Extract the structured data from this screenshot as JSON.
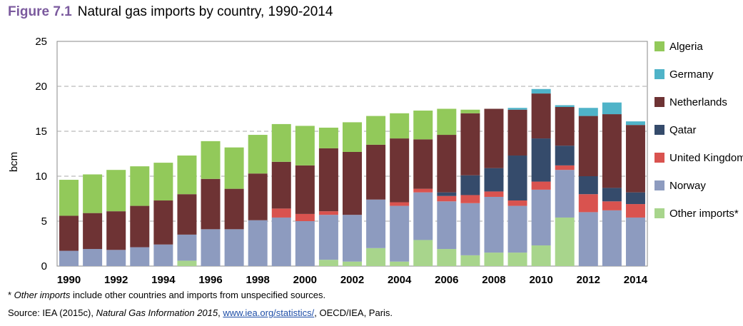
{
  "header": {
    "figure_label": "Figure 7.1",
    "title": "Natural gas imports by country, 1990-2014"
  },
  "footnote": {
    "marker": "* ",
    "italic": "Other imports",
    "rest": " include other countries and imports from unspecified sources."
  },
  "source": {
    "prefix": "Source: IEA (2015c), ",
    "italic": "Natural Gas Information 2015",
    "sep": ", ",
    "link": "www.iea.org/statistics/",
    "suffix": ", OECD/IEA, Paris."
  },
  "chart_data": {
    "type": "bar",
    "stacked": true,
    "title": "Natural gas imports by country, 1990-2014",
    "xlabel": "",
    "ylabel": "bcm",
    "ylim": [
      0,
      25
    ],
    "yticks": [
      0,
      5,
      10,
      15,
      20,
      25
    ],
    "xtick_labels": [
      "1990",
      "1992",
      "1994",
      "1996",
      "1998",
      "2000",
      "2002",
      "2004",
      "2006",
      "2008",
      "2010",
      "2012",
      "2014"
    ],
    "grid": "horizontal dashed",
    "legend_position": "right",
    "categories": [
      "1990",
      "1991",
      "1992",
      "1993",
      "1994",
      "1995",
      "1996",
      "1997",
      "1998",
      "1999",
      "2000",
      "2001",
      "2002",
      "2003",
      "2004",
      "2005",
      "2006",
      "2007",
      "2008",
      "2009",
      "2010",
      "2011",
      "2012",
      "2013",
      "2014"
    ],
    "series": [
      {
        "name": "Other imports*",
        "color": "#a8d58c",
        "values": [
          0,
          0,
          0,
          0,
          0,
          0.6,
          0,
          0,
          0,
          0,
          0,
          0.7,
          0.5,
          2.0,
          0.5,
          2.9,
          1.9,
          1.2,
          1.5,
          1.5,
          2.3,
          5.4,
          0,
          0,
          0
        ]
      },
      {
        "name": "Norway",
        "color": "#8d9bbf",
        "values": [
          1.7,
          1.9,
          1.8,
          2.1,
          2.4,
          2.9,
          4.1,
          4.1,
          5.1,
          5.4,
          5.0,
          5.0,
          5.2,
          5.4,
          6.2,
          5.3,
          5.3,
          5.8,
          6.2,
          5.2,
          6.2,
          5.3,
          6.0,
          6.2,
          5.4
        ]
      },
      {
        "name": "United Kingdom",
        "color": "#d9534f",
        "values": [
          0,
          0,
          0,
          0,
          0,
          0,
          0,
          0,
          0,
          1.0,
          0.8,
          0.4,
          0,
          0,
          0.4,
          0.4,
          0.6,
          0.9,
          0.6,
          0.6,
          0.9,
          0.5,
          2.0,
          1.0,
          1.5
        ]
      },
      {
        "name": "Qatar",
        "color": "#354b6b",
        "values": [
          0,
          0,
          0,
          0,
          0,
          0,
          0,
          0,
          0,
          0,
          0,
          0,
          0,
          0,
          0,
          0,
          0.4,
          2.2,
          2.6,
          5.0,
          4.8,
          2.2,
          2.0,
          1.5,
          1.3
        ]
      },
      {
        "name": "Netherlands",
        "color": "#6e3334",
        "values": [
          3.9,
          4.0,
          4.3,
          4.6,
          4.9,
          4.5,
          5.6,
          4.5,
          5.2,
          5.2,
          5.4,
          7.0,
          7.0,
          6.1,
          7.1,
          5.5,
          6.4,
          6.9,
          6.6,
          5.1,
          5.0,
          4.3,
          6.7,
          8.2,
          7.5
        ]
      },
      {
        "name": "Germany",
        "color": "#4fb3c8",
        "values": [
          0,
          0,
          0,
          0,
          0,
          0,
          0,
          0,
          0,
          0,
          0,
          0,
          0,
          0,
          0,
          0,
          0,
          0,
          0,
          0.2,
          0.5,
          0.2,
          0.9,
          1.3,
          0.4
        ]
      },
      {
        "name": "Algeria",
        "color": "#92c95a",
        "values": [
          4.0,
          4.3,
          4.6,
          4.4,
          4.2,
          4.3,
          4.2,
          4.6,
          4.3,
          4.2,
          4.4,
          2.3,
          3.3,
          3.2,
          2.8,
          3.2,
          2.9,
          0.4,
          0,
          0,
          0,
          0,
          0,
          0,
          0
        ]
      }
    ],
    "legend_order": [
      "Algeria",
      "Germany",
      "Netherlands",
      "Qatar",
      "United Kingdom",
      "Norway",
      "Other imports*"
    ]
  }
}
